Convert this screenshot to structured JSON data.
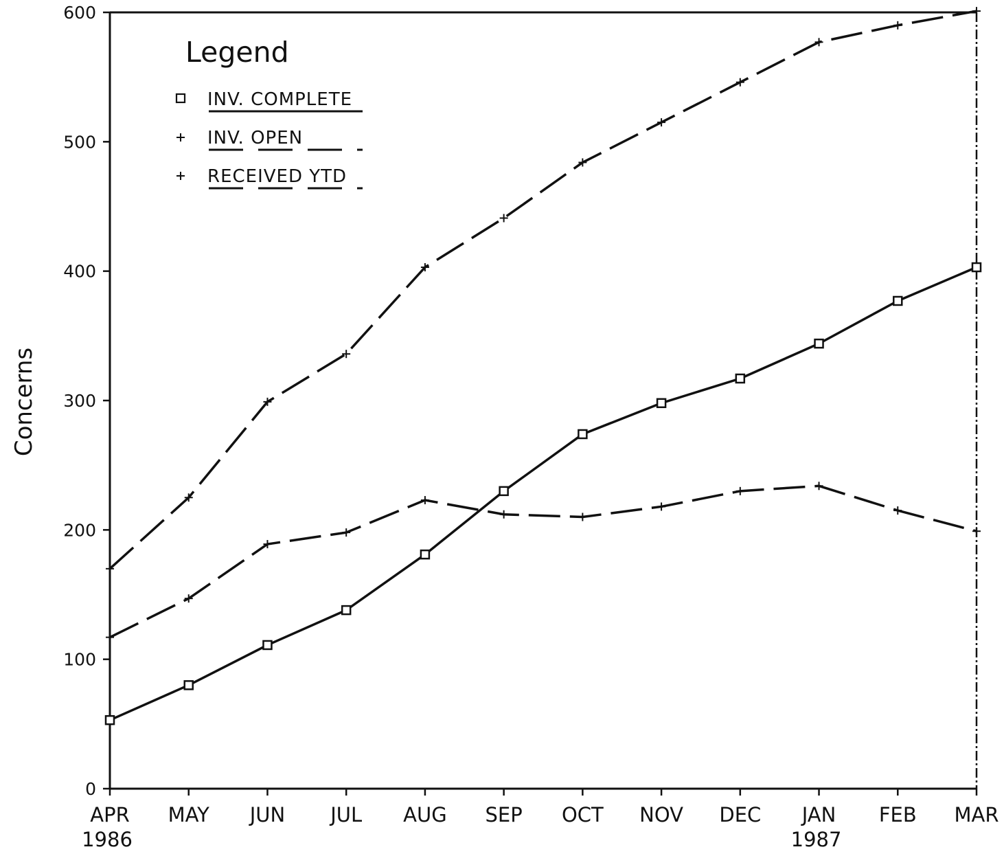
{
  "chart_data": {
    "type": "line",
    "title": "",
    "ylabel": "Concerns",
    "xlabel": "",
    "ylim": [
      0,
      600
    ],
    "yticks": [
      0,
      100,
      200,
      300,
      400,
      500,
      600
    ],
    "categories": [
      "APR",
      "MAY",
      "JUN",
      "JUL",
      "AUG",
      "SEP",
      "OCT",
      "NOV",
      "DEC",
      "JAN",
      "FEB",
      "MAR"
    ],
    "category_sublabels": [
      "1986",
      "",
      "",
      "",
      "",
      "",
      "",
      "",
      "",
      "1987",
      "",
      ""
    ],
    "legend_title": "Legend",
    "legend_position": "top-left",
    "grid": false,
    "series": [
      {
        "name": "INV. COMPLETE",
        "marker": "square",
        "line": "solid",
        "values": [
          53,
          80,
          111,
          138,
          181,
          230,
          274,
          298,
          317,
          344,
          377,
          403
        ]
      },
      {
        "name": "INV. OPEN",
        "marker": "plus",
        "line": "dashed",
        "values": [
          117,
          147,
          189,
          198,
          223,
          212,
          210,
          218,
          230,
          234,
          215,
          199
        ]
      },
      {
        "name": "RECEIVED YTD",
        "marker": "plus",
        "line": "dashed",
        "values": [
          170,
          225,
          299,
          336,
          403,
          441,
          484,
          515,
          546,
          577,
          590,
          601
        ]
      }
    ]
  }
}
